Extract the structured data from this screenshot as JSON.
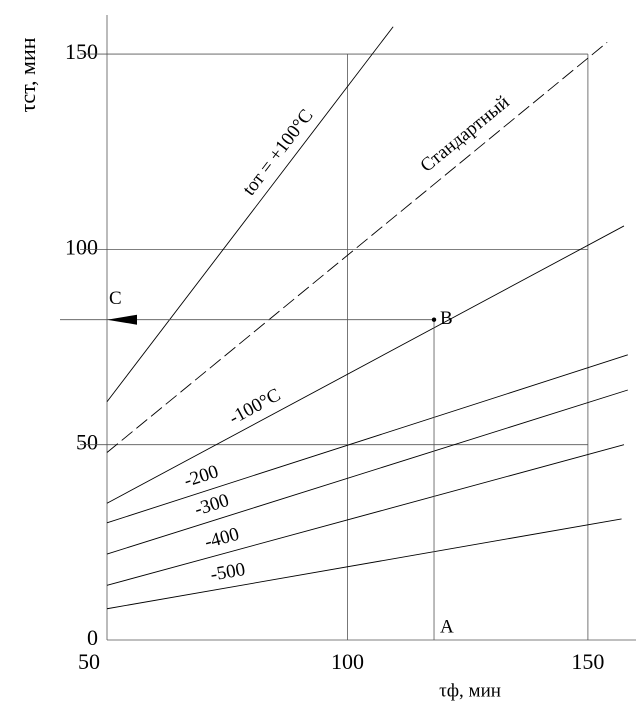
{
  "chart_data": {
    "type": "line",
    "y_label": "τст, мин",
    "x_label": "τф, мин",
    "xlim": [
      50,
      160
    ],
    "ylim": [
      0,
      160
    ],
    "xticks": [
      50,
      100,
      150
    ],
    "yticks": [
      0,
      50,
      100,
      150
    ],
    "grid": true,
    "series": [
      {
        "name": "tот = +100°C",
        "color": "#000000",
        "x": [
          50,
          109.5
        ],
        "values": [
          61,
          157
        ]
      },
      {
        "name": "Стандартный",
        "color": "#000000",
        "dashed": true,
        "x": [
          50,
          154
        ],
        "values": [
          48,
          153
        ]
      },
      {
        "name": "-100°C",
        "color": "#000000",
        "x": [
          50,
          157.5
        ],
        "values": [
          35,
          106
        ]
      },
      {
        "name": "-200",
        "color": "#000000",
        "x": [
          50,
          158.3
        ],
        "values": [
          30,
          73
        ]
      },
      {
        "name": "-300",
        "color": "#000000",
        "x": [
          50,
          158.3
        ],
        "values": [
          22,
          64
        ]
      },
      {
        "name": "-400",
        "color": "#000000",
        "x": [
          50,
          157.5
        ],
        "values": [
          14,
          50
        ]
      },
      {
        "name": "-500",
        "color": "#000000",
        "x": [
          50,
          157
        ],
        "values": [
          8,
          31
        ]
      }
    ],
    "points": [
      {
        "label": "A",
        "x": 118,
        "y": 0
      },
      {
        "label": "B",
        "x": 118,
        "y": 82
      },
      {
        "label": "C",
        "x": 50,
        "y": 82
      }
    ]
  }
}
